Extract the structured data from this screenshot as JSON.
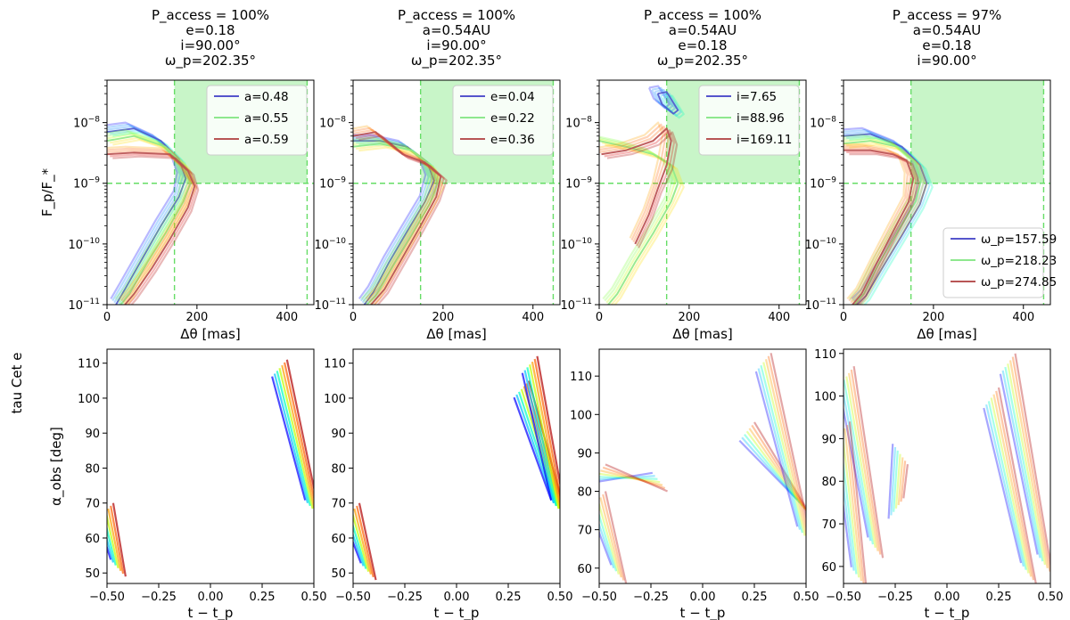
{
  "figure": {
    "row_label": "tau Cet e",
    "palette": {
      "rainbow": [
        "#0000ff",
        "#0080ff",
        "#00c0ff",
        "#00ffc0",
        "#80ff40",
        "#c0ff00",
        "#ffe000",
        "#ffa000",
        "#ff6000",
        "#e00000",
        "#b00000"
      ],
      "access_fill": "#c8f5c8",
      "access_line": "#66dd66"
    }
  },
  "chart_data": [
    {
      "id": "top-1",
      "type": "line",
      "title": [
        "P_access = 100%",
        "e=0.18",
        "i=90.00°",
        "ω_p=202.35°"
      ],
      "xlabel": "Δθ [mas]",
      "ylabel": "F_p/F_*",
      "xlim": [
        0,
        460
      ],
      "ylim": [
        1e-11,
        5e-08
      ],
      "yscale": "log",
      "xticks": [
        "0",
        "200",
        "400"
      ],
      "yticks": [
        "10^-11",
        "10^-10",
        "10^-9",
        "10^-8"
      ],
      "access_region": {
        "x": [
          150,
          445
        ],
        "y_min": 1e-09
      },
      "legend": {
        "loc": "upper right",
        "entries": [
          "a=0.48",
          "a=0.55",
          "a=0.59"
        ]
      },
      "series": [
        {
          "name": "a=0.48",
          "x": [
            0,
            60,
            120,
            160,
            175,
            160,
            120,
            80,
            40,
            20
          ],
          "y": [
            7e-09,
            8e-09,
            5e-09,
            2.5e-09,
            1.2e-09,
            6e-10,
            2e-10,
            6e-11,
            1.8e-11,
            1e-11
          ]
        },
        {
          "name": "a=0.55",
          "x": [
            0,
            60,
            130,
            170,
            185,
            170,
            130,
            90,
            50,
            30
          ],
          "y": [
            5e-09,
            6e-09,
            4e-09,
            2e-09,
            1e-09,
            5e-10,
            1.5e-10,
            5e-11,
            1.5e-11,
            1e-11
          ]
        },
        {
          "name": "a=0.59",
          "x": [
            0,
            60,
            140,
            180,
            195,
            180,
            140,
            100,
            60,
            40
          ],
          "y": [
            3e-09,
            3.2e-09,
            3e-09,
            1.6e-09,
            9e-10,
            4e-10,
            1.2e-10,
            4e-11,
            1.5e-11,
            1e-11
          ]
        }
      ]
    },
    {
      "id": "top-2",
      "type": "line",
      "title": [
        "P_access = 100%",
        "a=0.54AU",
        "i=90.00°",
        "ω_p=202.35°"
      ],
      "xlabel": "Δθ [mas]",
      "ylabel": "",
      "xlim": [
        0,
        460
      ],
      "ylim": [
        1e-11,
        5e-08
      ],
      "yscale": "log",
      "xticks": [
        "0",
        "200",
        "400"
      ],
      "yticks": [
        "10^-11",
        "10^-10",
        "10^-9",
        "10^-8"
      ],
      "access_region": {
        "x": [
          150,
          445
        ],
        "y_min": 1e-09
      },
      "legend": {
        "loc": "upper right",
        "entries": [
          "e=0.04",
          "e=0.22",
          "e=0.36"
        ]
      },
      "series": [
        {
          "name": "e=0.04",
          "x": [
            0,
            60,
            120,
            165,
            180,
            160,
            120,
            80,
            45,
            25
          ],
          "y": [
            5e-09,
            5e-09,
            4e-09,
            2.2e-09,
            1.1e-09,
            5e-10,
            1.6e-10,
            5e-11,
            1.6e-11,
            1e-11
          ]
        },
        {
          "name": "e=0.22",
          "x": [
            0,
            60,
            130,
            170,
            188,
            170,
            130,
            90,
            50,
            30
          ],
          "y": [
            4e-09,
            4.5e-09,
            3.5e-09,
            2e-09,
            1e-09,
            4.5e-10,
            1.4e-10,
            4.5e-11,
            1.4e-11,
            1e-11
          ]
        },
        {
          "name": "e=0.36",
          "x": [
            0,
            50,
            110,
            160,
            195,
            185,
            150,
            110,
            70,
            40
          ],
          "y": [
            6e-09,
            7e-09,
            3e-09,
            2.2e-09,
            1.3e-09,
            6e-10,
            2e-10,
            6e-11,
            1.8e-11,
            1e-11
          ]
        }
      ]
    },
    {
      "id": "top-3",
      "type": "line",
      "title": [
        "P_access = 100%",
        "a=0.54AU",
        "e=0.18",
        "ω_p=202.35°"
      ],
      "xlabel": "Δθ [mas]",
      "ylabel": "",
      "xlim": [
        0,
        460
      ],
      "ylim": [
        1e-11,
        5e-08
      ],
      "yscale": "log",
      "xticks": [
        "0",
        "200",
        "400"
      ],
      "yticks": [
        "10^-11",
        "10^-10",
        "10^-9",
        "10^-8"
      ],
      "access_region": {
        "x": [
          150,
          445
        ],
        "y_min": 1e-09
      },
      "legend": {
        "loc": "upper right",
        "entries": [
          "i=7.65",
          "i=88.96",
          "i=169.11"
        ]
      },
      "series": [
        {
          "name": "i=7.65",
          "x": [
            130,
            150,
            175,
            165,
            140,
            130
          ],
          "y": [
            3e-08,
            3.2e-08,
            1.6e-08,
            1.4e-08,
            2e-08,
            3e-08
          ]
        },
        {
          "name": "i=88.96",
          "x": [
            0,
            60,
            120,
            160,
            175,
            160,
            120,
            80,
            40,
            20
          ],
          "y": [
            5e-09,
            4e-09,
            3e-09,
            2e-09,
            1e-09,
            5e-10,
            1.5e-10,
            5e-11,
            1.5e-11,
            1e-11
          ]
        },
        {
          "name": "i=169.11",
          "x": [
            5,
            60,
            120,
            150,
            160,
            150,
            130,
            110,
            80
          ],
          "y": [
            3e-09,
            3.5e-09,
            5e-09,
            8e-09,
            5e-09,
            2e-09,
            8e-10,
            3e-10,
            1e-10
          ]
        }
      ]
    },
    {
      "id": "top-4",
      "type": "line",
      "title": [
        "P_access = 97%",
        "a=0.54AU",
        "e=0.18",
        "i=90.00°"
      ],
      "xlabel": "Δθ [mas]",
      "ylabel": "",
      "xlim": [
        0,
        460
      ],
      "ylim": [
        1e-11,
        5e-08
      ],
      "yscale": "log",
      "xticks": [
        "0",
        "200",
        "400"
      ],
      "yticks": [
        "10^-11",
        "10^-10",
        "10^-9",
        "10^-8"
      ],
      "access_region": {
        "x": [
          150,
          445
        ],
        "y_min": 1e-09
      },
      "legend": {
        "loc": "lower right",
        "entries": [
          "ω_p=157.59",
          "ω_p=218.23",
          "ω_p=274.85"
        ]
      },
      "series": [
        {
          "name": "ω_p=157.59",
          "x": [
            0,
            60,
            130,
            170,
            185,
            170,
            130,
            90,
            50,
            30
          ],
          "y": [
            6e-09,
            6.5e-09,
            4e-09,
            2e-09,
            1e-09,
            4.5e-10,
            1.4e-10,
            4.5e-11,
            1.4e-11,
            1e-11
          ]
        },
        {
          "name": "ω_p=218.23",
          "x": [
            0,
            60,
            120,
            160,
            172,
            160,
            120,
            80,
            45,
            25
          ],
          "y": [
            4.5e-09,
            5e-09,
            4e-09,
            2.2e-09,
            1.1e-09,
            5e-10,
            1.6e-10,
            5e-11,
            1.5e-11,
            1e-11
          ]
        },
        {
          "name": "ω_p=274.85",
          "x": [
            0,
            60,
            110,
            140,
            155,
            145,
            110,
            75,
            40,
            20
          ],
          "y": [
            3.5e-09,
            3.5e-09,
            3e-09,
            2.4e-09,
            1.2e-09,
            5e-10,
            1.6e-10,
            5e-11,
            1.5e-11,
            1e-11
          ]
        }
      ]
    },
    {
      "id": "bottom-1",
      "type": "line",
      "xlabel": "t − t_p",
      "ylabel": "α_obs [deg]",
      "xlim": [
        -0.5,
        0.5
      ],
      "ylim": [
        47,
        114
      ],
      "xticks": [
        "−0.50",
        "−0.25",
        "0.00",
        "0.25",
        "0.50"
      ],
      "yticks": [
        "50",
        "60",
        "70",
        "80",
        "90",
        "100",
        "110"
      ],
      "segments": [
        {
          "x": [
            -0.5,
            -0.44
          ],
          "y": [
            68,
            51
          ]
        },
        {
          "x": [
            0.34,
            0.5
          ],
          "y": [
            109,
            68
          ]
        }
      ]
    },
    {
      "id": "bottom-2",
      "type": "line",
      "xlabel": "t − t_p",
      "ylabel": "",
      "xlim": [
        -0.5,
        0.5
      ],
      "ylim": [
        47,
        114
      ],
      "xticks": [
        "−0.50",
        "−0.25",
        "0.00",
        "0.25",
        "0.50"
      ],
      "yticks": [
        "50",
        "60",
        "70",
        "80",
        "90",
        "100",
        "110"
      ],
      "segments": [
        {
          "x": [
            -0.5,
            -0.42
          ],
          "y": [
            68,
            50
          ]
        },
        {
          "x": [
            0.32,
            0.5
          ],
          "y": [
            103,
            68
          ]
        },
        {
          "x": [
            0.36,
            0.5
          ],
          "y": [
            110,
            68
          ]
        }
      ]
    },
    {
      "id": "bottom-3",
      "type": "line",
      "xlabel": "t − t_p",
      "ylabel": "",
      "xlim": [
        -0.5,
        0.5
      ],
      "ylim": [
        56,
        117
      ],
      "xticks": [
        "−0.50",
        "−0.25",
        "0.00",
        "0.25",
        "0.50"
      ],
      "yticks": [
        "60",
        "70",
        "80",
        "90",
        "100",
        "110"
      ],
      "segments": [
        {
          "x": [
            -0.5,
            -0.2
          ],
          "y": [
            85,
            82
          ]
        },
        {
          "x": [
            -0.5,
            -0.4
          ],
          "y": [
            78,
            58
          ]
        },
        {
          "x": [
            0.22,
            0.5
          ],
          "y": [
            96,
            75
          ]
        },
        {
          "x": [
            0.3,
            0.5
          ],
          "y": [
            114,
            68
          ]
        }
      ]
    },
    {
      "id": "bottom-4",
      "type": "line",
      "xlabel": "t − t_p",
      "ylabel": "",
      "xlim": [
        -0.5,
        0.5
      ],
      "ylim": [
        56,
        111
      ],
      "xticks": [
        "−0.50",
        "−0.25",
        "0.00",
        "0.25",
        "0.50"
      ],
      "yticks": [
        "60",
        "70",
        "80",
        "90",
        "100",
        "110"
      ],
      "segments": [
        {
          "x": [
            -0.48,
            -0.34
          ],
          "y": [
            105,
            64
          ]
        },
        {
          "x": [
            -0.5,
            -0.42
          ],
          "y": [
            92,
            57
          ]
        },
        {
          "x": [
            -0.24,
            -0.22
          ],
          "y": [
            74,
            86
          ]
        },
        {
          "x": [
            0.22,
            0.4
          ],
          "y": [
            100,
            58
          ]
        },
        {
          "x": [
            0.3,
            0.48
          ],
          "y": [
            108,
            60
          ]
        }
      ]
    }
  ]
}
